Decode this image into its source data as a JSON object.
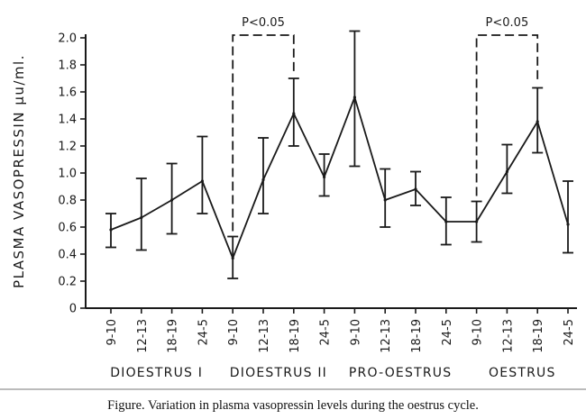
{
  "chart_data": {
    "type": "line",
    "title": "",
    "ylabel": "PLASMA VASOPRESSIN μu/ml.",
    "xlabel": "",
    "ylim": [
      0,
      2.0
    ],
    "yticks": [
      "0",
      "0.2",
      "0.4",
      "0.6",
      "0.8",
      "1.0",
      "1.2",
      "1.4",
      "1.6",
      "1.8",
      "2.0"
    ],
    "categories": [
      "9-10",
      "12-13",
      "18-19",
      "24-5",
      "9-10",
      "12-13",
      "18-19",
      "24-5",
      "9-10",
      "12-13",
      "18-19",
      "24-5",
      "9-10",
      "12-13",
      "18-19",
      "24-5"
    ],
    "groups": [
      {
        "label": "DIOESTRUS I",
        "start": 0,
        "end": 3
      },
      {
        "label": "DIOESTRUS II",
        "start": 4,
        "end": 7
      },
      {
        "label": "PRO-OESTRUS",
        "start": 8,
        "end": 11
      },
      {
        "label": "OESTRUS",
        "start": 12,
        "end": 15
      }
    ],
    "series": [
      {
        "values": [
          0.58,
          0.67,
          0.8,
          0.94,
          0.37,
          0.95,
          1.44,
          0.97,
          1.56,
          0.8,
          0.88,
          0.64,
          0.64,
          1.01,
          1.38,
          0.62
        ],
        "error_low": [
          0.45,
          0.43,
          0.55,
          0.7,
          0.22,
          0.7,
          1.2,
          0.83,
          1.05,
          0.6,
          0.76,
          0.47,
          0.49,
          0.85,
          1.15,
          0.41
        ],
        "error_high": [
          0.7,
          0.96,
          1.07,
          1.27,
          0.53,
          1.26,
          1.7,
          1.14,
          2.05,
          1.03,
          1.01,
          0.82,
          0.79,
          1.21,
          1.63,
          0.94
        ]
      }
    ],
    "annotations": [
      {
        "text": "P<0.05",
        "from_index": 4,
        "to_index": 6
      },
      {
        "text": "P<0.05",
        "from_index": 12,
        "to_index": 14
      }
    ],
    "grid": false,
    "legend": "none"
  },
  "caption": "Figure. Variation in plasma vasopressin levels during the oestrus cycle."
}
